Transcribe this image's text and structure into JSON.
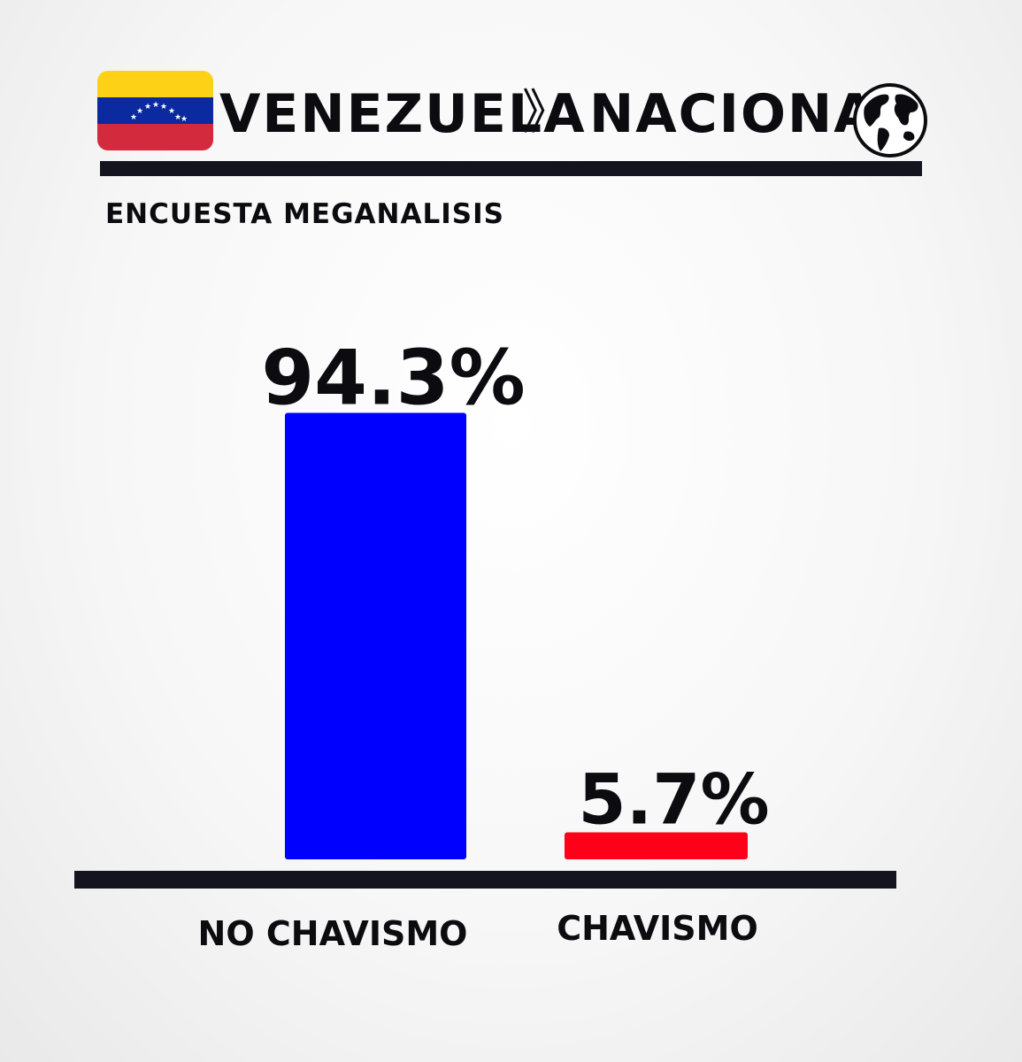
{
  "header": {
    "country": "VENEZUELA",
    "chevron": "》",
    "region": "NACIONAL",
    "flag_icon": "venezuela-flag-icon",
    "globe_icon": "globe-icon"
  },
  "subtitle": "ENCUESTA MEGANALISIS",
  "colors": {
    "text": "#0b0b10",
    "rule": "#14141f",
    "flag_yellow": "#fcd116",
    "flag_blue": "#0b2a9f",
    "flag_red": "#d42a3e",
    "bar_no_chavismo": "#0000ff",
    "bar_chavismo": "#ff0019"
  },
  "chart_data": {
    "type": "bar",
    "categories": [
      "NO CHAVISMO",
      "CHAVISMO"
    ],
    "values": [
      94.3,
      5.7
    ],
    "value_labels": [
      "94.3%",
      "5.7%"
    ],
    "colors": [
      "#0000ff",
      "#ff0019"
    ],
    "title": "",
    "xlabel": "",
    "ylabel": "",
    "ylim": [
      0,
      100
    ],
    "grid": false,
    "legend": "none"
  }
}
